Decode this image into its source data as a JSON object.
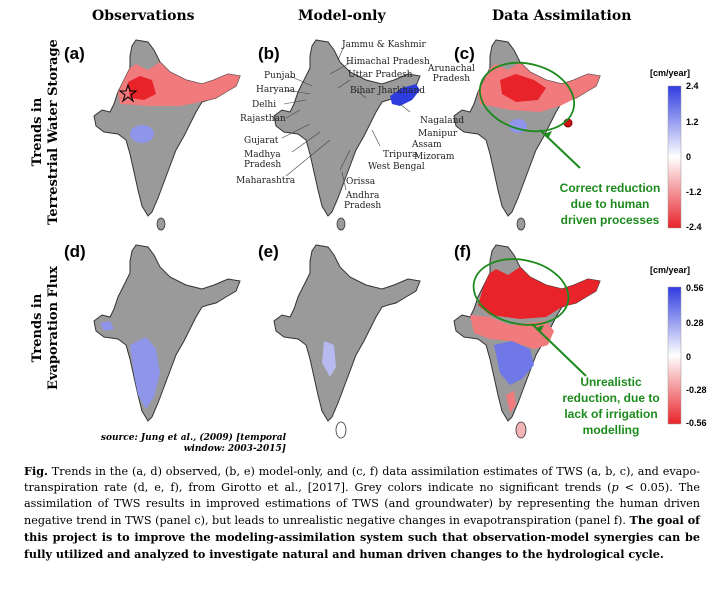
{
  "columns": {
    "observations": "Observations",
    "model_only": "Model-only",
    "data_assimilation": "Data Assimilation"
  },
  "rows": {
    "tws": [
      "Trends in",
      "Terrestrial Water Storage"
    ],
    "et": [
      "Trends in",
      "Evaporation Flux"
    ]
  },
  "panels": [
    "(a)",
    "(b)",
    "(c)",
    "(d)",
    "(e)",
    "(f)"
  ],
  "state_labels": {
    "jammu": "Jammu & Kashmir",
    "himachal": "Himachal Pradesh",
    "punjab": "Punjab",
    "uttar": "Uttar Pradesh",
    "haryana": "Haryana",
    "arunachal": [
      "Arunachal",
      "Pradesh"
    ],
    "bihar": "Bihar Jharkhand",
    "delhi": "Delhi",
    "rajasthan": "Rajasthan",
    "nagaland": "Nagaland",
    "manipur": "Manipur",
    "assam": "Assam",
    "mizoram": "Mizoram",
    "gujarat": "Gujarat",
    "tripura": "Tripura",
    "madhya": [
      "Madhya",
      "Pradesh"
    ],
    "westbengal": "West Bengal",
    "maharashtra": "Maharashtra",
    "orissa": "Orissa",
    "andhra": [
      "Andhra",
      "Pradesh"
    ]
  },
  "colorbar_top": {
    "unit": "[cm/year]",
    "ticks": [
      "2.4",
      "1.2",
      "0",
      "-1.2",
      "-2.4"
    ]
  },
  "colorbar_bottom": {
    "unit": "[cm/year]",
    "ticks": [
      "0.56",
      "0.28",
      "0",
      "-0.28",
      "-0.56"
    ]
  },
  "annotations": {
    "top": [
      "Correct reduction",
      "due to human",
      "driven processes"
    ],
    "bottom": [
      "Unrealistic",
      "reduction, due to",
      "lack of irrigation",
      "modelling"
    ]
  },
  "source": [
    "source: Jung et al., (2009)  [temporal",
    "window: 2003-2015]"
  ],
  "caption": {
    "fig_label": "Fig.",
    "part1": " Trends in the (a, d) observed, (b, e) model-only, and (c, f) data assimilation estimates of TWS (a, b, c), and evapo- transpiration rate (d, e, f), from Girotto et al., [2017]. Grey colors indicate no significant trends (",
    "p_symbol": "p",
    "part2": " < 0.05). The assimilation of TWS results in improved estimations of TWS (and groundwater) by representing the human driven negative trend in TWS (panel c), but leads to unrealistic negative changes in evapotranspiration (panel f). ",
    "bold": "The goal of this project  is to improve the modeling-assimilation system such that observation-model synergies can be fully utilized and analyzed to investigate natural and human driven changes to the hydrological cycle."
  },
  "colors": {
    "no_trend_grey": "#9a9a9a",
    "positive_blue": "#2f3ce0",
    "negative_red": "#e8242a",
    "annotation_green": "#1d8a1d"
  }
}
